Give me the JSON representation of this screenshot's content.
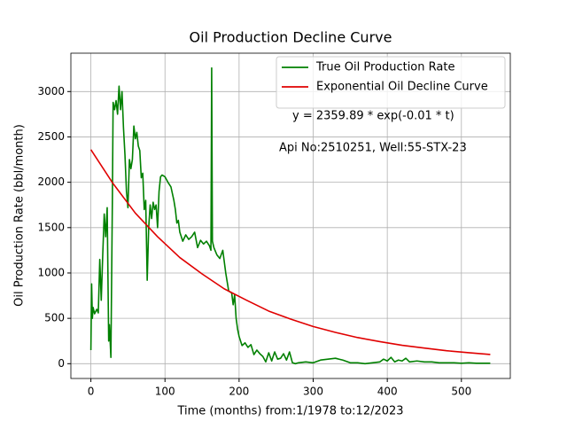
{
  "chart_data": {
    "type": "line",
    "title": "Oil Production Decline Curve",
    "xlabel": "Time (months) from:1/1978 to:12/2023",
    "ylabel": "Oil Production Rate (bbl/month)",
    "annotations": [
      "y = 2359.89 * exp(-0.01 * t)",
      "Api No:2510251, Well:55-STX-23"
    ],
    "xlim": [
      -27,
      566
    ],
    "ylim": [
      -163,
      3423
    ],
    "xticks": [
      0,
      100,
      200,
      300,
      400,
      500
    ],
    "yticks": [
      0,
      500,
      1000,
      1500,
      2000,
      2500,
      3000
    ],
    "grid": true,
    "legend": "upper right",
    "series": [
      {
        "name": "True Oil Production Rate",
        "color": "#008000",
        "x": [
          0,
          1,
          2,
          3,
          5,
          8,
          10,
          12,
          14,
          16,
          18,
          20,
          22,
          24,
          25,
          27,
          29,
          30,
          32,
          34,
          36,
          38,
          40,
          42,
          44,
          46,
          48,
          50,
          52,
          54,
          56,
          58,
          60,
          62,
          64,
          66,
          68,
          70,
          72,
          74,
          76,
          78,
          80,
          82,
          84,
          86,
          88,
          90,
          92,
          94,
          96,
          100,
          104,
          108,
          112,
          114,
          116,
          118,
          120,
          124,
          128,
          132,
          136,
          140,
          144,
          148,
          152,
          156,
          160,
          162,
          163,
          164,
          166,
          170,
          174,
          178,
          182,
          186,
          190,
          192,
          194,
          196,
          198,
          200,
          204,
          208,
          212,
          216,
          220,
          224,
          228,
          232,
          236,
          240,
          244,
          248,
          252,
          256,
          260,
          264,
          268,
          272,
          276,
          280,
          290,
          300,
          310,
          320,
          330,
          340,
          350,
          360,
          370,
          380,
          390,
          395,
          400,
          405,
          410,
          415,
          420,
          425,
          430,
          440,
          450,
          460,
          470,
          480,
          490,
          500,
          510,
          520,
          530,
          539
        ],
        "values": [
          150,
          880,
          500,
          620,
          550,
          600,
          560,
          1150,
          700,
          1200,
          1650,
          1400,
          1720,
          250,
          430,
          70,
          1800,
          2880,
          2800,
          2900,
          2750,
          3060,
          2800,
          3000,
          2600,
          2300,
          1900,
          1720,
          2250,
          2150,
          2250,
          2620,
          2480,
          2550,
          2400,
          2350,
          2050,
          2100,
          1700,
          1800,
          920,
          1500,
          1750,
          1600,
          1780,
          1700,
          1750,
          1500,
          1900,
          2060,
          2080,
          2060,
          2000,
          1950,
          1800,
          1700,
          1550,
          1580,
          1450,
          1350,
          1420,
          1370,
          1400,
          1450,
          1280,
          1360,
          1320,
          1350,
          1300,
          1250,
          3260,
          1350,
          1280,
          1200,
          1160,
          1250,
          1000,
          800,
          780,
          650,
          760,
          500,
          380,
          300,
          200,
          230,
          180,
          210,
          100,
          150,
          110,
          80,
          20,
          120,
          30,
          130,
          50,
          60,
          110,
          40,
          130,
          10,
          0,
          10,
          20,
          10,
          40,
          50,
          60,
          40,
          10,
          10,
          0,
          10,
          20,
          50,
          30,
          70,
          20,
          40,
          30,
          60,
          20,
          30,
          20,
          20,
          10,
          10,
          10,
          5,
          10,
          5,
          5,
          5
        ]
      },
      {
        "name": "Exponential Oil Decline Curve",
        "color": "#e00000",
        "x": [
          0,
          30,
          60,
          90,
          120,
          150,
          180,
          210,
          240,
          270,
          300,
          330,
          360,
          390,
          420,
          450,
          480,
          510,
          539
        ],
        "values": [
          2360,
          1985,
          1660,
          1400,
          1170,
          990,
          825,
          700,
          580,
          490,
          410,
          345,
          288,
          243,
          203,
          172,
          143,
          121,
          101
        ]
      }
    ]
  }
}
